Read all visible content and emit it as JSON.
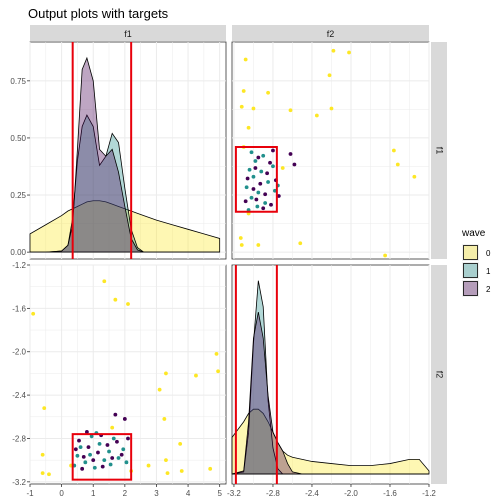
{
  "title": "Output plots with targets",
  "legend": {
    "title": "wave",
    "placement": "right",
    "items": [
      {
        "label": "0",
        "color": "#FDE725"
      },
      {
        "label": "1",
        "color": "#21908C"
      },
      {
        "label": "2",
        "color": "#440154"
      }
    ]
  },
  "colors": {
    "wave0": "#FDE725",
    "wave1": "#21908C",
    "wave2": "#440154",
    "target": "#E8000B",
    "strip": "#D9D9D9",
    "grid": "#EBEBEB"
  },
  "chart_data": {
    "type": "scatter",
    "facets": {
      "columns": [
        "f1",
        "f2"
      ],
      "rows": [
        "f1",
        "f2"
      ]
    },
    "axes": {
      "f1_density": {
        "xlim": [
          -1.0,
          5.2
        ],
        "ylim": [
          -0.03,
          0.92
        ],
        "yticks": [
          "0.00",
          "0.25",
          "0.50",
          "0.75"
        ]
      },
      "f1": {
        "range": [
          -1.0,
          5.2
        ],
        "ticks": [
          "-1",
          "0",
          "1",
          "2",
          "3",
          "4",
          "5"
        ]
      },
      "f2": {
        "range": [
          -3.22,
          -1.2
        ],
        "ticks": [
          "-3.2",
          "-2.8",
          "-2.4",
          "-2.0",
          "-1.6",
          "-1.2"
        ]
      },
      "f2_density_ylim": [
        0,
        2.0
      ],
      "top_right_ylim": [
        -0.03,
        0.92
      ]
    },
    "targets": {
      "f1": [
        0.35,
        2.2
      ],
      "f2": [
        -3.18,
        -2.76
      ]
    },
    "density_f1": {
      "x": [
        -1.0,
        -0.5,
        0.0,
        0.2,
        0.35,
        0.5,
        0.65,
        0.8,
        1.0,
        1.2,
        1.4,
        1.6,
        1.8,
        2.0,
        2.2,
        2.4,
        2.6,
        3.0,
        3.5,
        4.0,
        4.5,
        5.0
      ],
      "series": [
        {
          "name": "0",
          "values": [
            0.08,
            0.12,
            0.16,
            0.18,
            0.19,
            0.2,
            0.21,
            0.22,
            0.225,
            0.225,
            0.22,
            0.21,
            0.2,
            0.19,
            0.18,
            0.17,
            0.16,
            0.14,
            0.12,
            0.1,
            0.08,
            0.06
          ]
        },
        {
          "name": "1",
          "values": [
            0.0,
            0.0,
            0.005,
            0.03,
            0.15,
            0.4,
            0.55,
            0.6,
            0.55,
            0.38,
            0.42,
            0.52,
            0.48,
            0.28,
            0.1,
            0.02,
            0.0,
            0.0,
            0.0,
            0.0,
            0.0,
            0.0
          ]
        },
        {
          "name": "2",
          "values": [
            0.0,
            0.0,
            0.005,
            0.03,
            0.12,
            0.45,
            0.8,
            0.85,
            0.75,
            0.45,
            0.42,
            0.45,
            0.35,
            0.2,
            0.06,
            0.01,
            0.0,
            0.0,
            0.0,
            0.0,
            0.0,
            0.0
          ]
        }
      ]
    },
    "density_f2": {
      "x": [
        -3.22,
        -3.1,
        -3.05,
        -3.0,
        -2.95,
        -2.9,
        -2.85,
        -2.8,
        -2.75,
        -2.7,
        -2.65,
        -2.6,
        -2.5,
        -2.4,
        -2.2,
        -2.0,
        -1.8,
        -1.6,
        -1.4,
        -1.3,
        -1.2
      ],
      "series": [
        {
          "name": "0",
          "values": [
            0.35,
            0.5,
            0.58,
            0.62,
            0.62,
            0.58,
            0.5,
            0.4,
            0.3,
            0.22,
            0.18,
            0.16,
            0.14,
            0.12,
            0.1,
            0.08,
            0.08,
            0.1,
            0.14,
            0.14,
            0.03
          ]
        },
        {
          "name": "1",
          "values": [
            0.0,
            0.02,
            0.4,
            1.25,
            1.85,
            1.6,
            0.7,
            0.25,
            0.05,
            0.0,
            0.0,
            0.0,
            0.0,
            0.0,
            0.0,
            0.0,
            0.0,
            0.0,
            0.0,
            0.0,
            0.0
          ]
        },
        {
          "name": "2",
          "values": [
            0.0,
            0.03,
            0.5,
            1.3,
            1.55,
            1.3,
            0.75,
            0.4,
            0.3,
            0.22,
            0.1,
            0.02,
            0.0,
            0.0,
            0.0,
            0.0,
            0.0,
            0.0,
            0.0,
            0.0,
            0.0
          ]
        }
      ]
    },
    "points_f1_f2": [
      {
        "wave": "0",
        "x": -0.9,
        "y": -1.65
      },
      {
        "wave": "0",
        "x": 1.35,
        "y": -1.35
      },
      {
        "wave": "0",
        "x": 1.7,
        "y": -1.52
      },
      {
        "wave": "0",
        "x": 2.1,
        "y": -1.56
      },
      {
        "wave": "0",
        "x": 4.9,
        "y": -2.02
      },
      {
        "wave": "0",
        "x": 4.95,
        "y": -2.18
      },
      {
        "wave": "0",
        "x": 3.3,
        "y": -2.2
      },
      {
        "wave": "0",
        "x": 4.25,
        "y": -2.22
      },
      {
        "wave": "0",
        "x": 3.1,
        "y": -2.35
      },
      {
        "wave": "0",
        "x": -0.55,
        "y": -2.52
      },
      {
        "wave": "0",
        "x": 3.25,
        "y": -2.62
      },
      {
        "wave": "0",
        "x": 3.75,
        "y": -2.85
      },
      {
        "wave": "0",
        "x": -0.6,
        "y": -2.95
      },
      {
        "wave": "0",
        "x": 3.3,
        "y": -3.0
      },
      {
        "wave": "0",
        "x": 2.75,
        "y": -3.05
      },
      {
        "wave": "0",
        "x": 4.7,
        "y": -3.08
      },
      {
        "wave": "0",
        "x": 2.2,
        "y": -3.1
      },
      {
        "wave": "0",
        "x": -0.6,
        "y": -3.12
      },
      {
        "wave": "0",
        "x": -0.4,
        "y": -3.13
      },
      {
        "wave": "0",
        "x": 3.35,
        "y": -3.12
      },
      {
        "wave": "0",
        "x": 3.8,
        "y": -3.1
      },
      {
        "wave": "0",
        "x": 0.3,
        "y": -3.05
      },
      {
        "wave": "0",
        "x": 1.6,
        "y": -2.7
      },
      {
        "wave": "1",
        "x": 0.6,
        "y": -2.88
      },
      {
        "wave": "1",
        "x": 0.9,
        "y": -2.95
      },
      {
        "wave": "1",
        "x": 1.2,
        "y": -2.85
      },
      {
        "wave": "1",
        "x": 1.5,
        "y": -2.92
      },
      {
        "wave": "1",
        "x": 1.8,
        "y": -2.98
      },
      {
        "wave": "1",
        "x": 0.75,
        "y": -3.02
      },
      {
        "wave": "1",
        "x": 1.05,
        "y": -3.07
      },
      {
        "wave": "1",
        "x": 1.65,
        "y": -2.8
      },
      {
        "wave": "1",
        "x": 1.95,
        "y": -2.9
      },
      {
        "wave": "1",
        "x": 0.5,
        "y": -2.96
      },
      {
        "wave": "1",
        "x": 1.35,
        "y": -3.0
      },
      {
        "wave": "1",
        "x": 0.95,
        "y": -2.78
      },
      {
        "wave": "1",
        "x": 1.1,
        "y": -2.75
      },
      {
        "wave": "1",
        "x": 2.05,
        "y": -3.02
      },
      {
        "wave": "1",
        "x": 0.4,
        "y": -3.05
      },
      {
        "wave": "1",
        "x": 1.55,
        "y": -3.04
      },
      {
        "wave": "2",
        "x": 0.55,
        "y": -2.82
      },
      {
        "wave": "2",
        "x": 0.85,
        "y": -2.88
      },
      {
        "wave": "2",
        "x": 1.15,
        "y": -2.93
      },
      {
        "wave": "2",
        "x": 1.45,
        "y": -2.86
      },
      {
        "wave": "2",
        "x": 1.75,
        "y": -2.83
      },
      {
        "wave": "2",
        "x": 0.7,
        "y": -2.97
      },
      {
        "wave": "2",
        "x": 1.0,
        "y": -3.0
      },
      {
        "wave": "2",
        "x": 1.3,
        "y": -3.06
      },
      {
        "wave": "2",
        "x": 1.9,
        "y": -2.95
      },
      {
        "wave": "2",
        "x": 2.1,
        "y": -2.8
      },
      {
        "wave": "2",
        "x": 0.45,
        "y": -2.9
      },
      {
        "wave": "2",
        "x": 1.25,
        "y": -2.77
      },
      {
        "wave": "2",
        "x": 1.6,
        "y": -2.98
      },
      {
        "wave": "2",
        "x": 0.8,
        "y": -2.74
      },
      {
        "wave": "2",
        "x": 2.0,
        "y": -2.62
      },
      {
        "wave": "2",
        "x": 1.7,
        "y": -2.58
      },
      {
        "wave": "2",
        "x": 0.65,
        "y": -3.08
      }
    ]
  }
}
